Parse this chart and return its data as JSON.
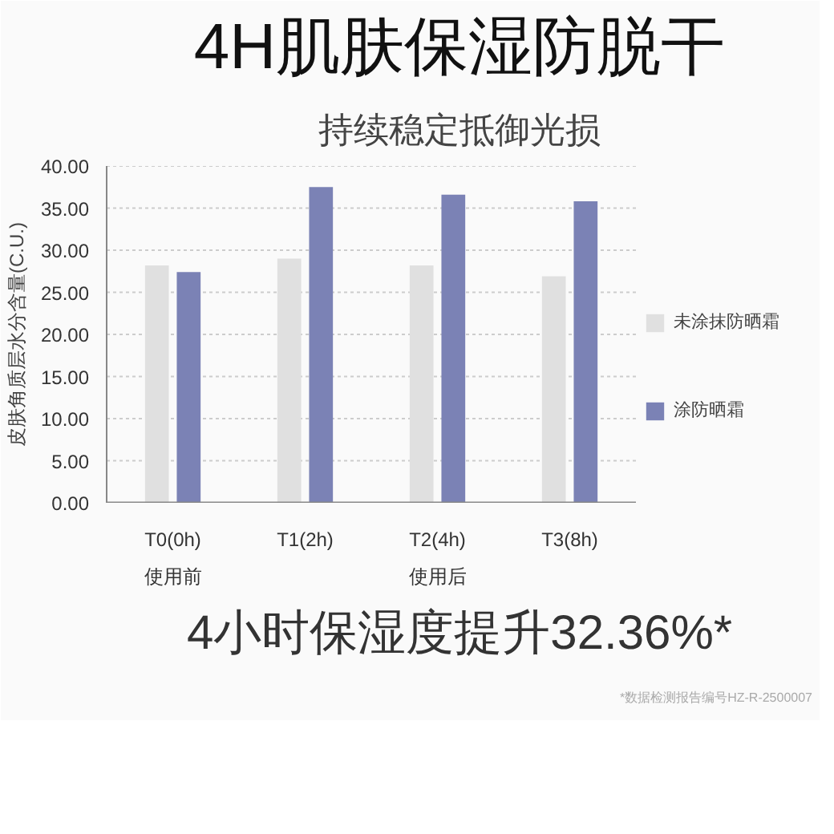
{
  "chart_data": {
    "type": "bar",
    "title": "4H肌肤保湿防脱干",
    "subtitle": "持续稳定抵御光损",
    "ylabel": "皮肤角质层水分含量(C.U.)",
    "categories": [
      "T0(0h)",
      "T1(2h)",
      "T2(4h)",
      "T3(8h)"
    ],
    "series": [
      {
        "name": "未涂抹防晒霜",
        "color": "#e0e0e0",
        "values": [
          28.2,
          29.0,
          28.2,
          26.9
        ]
      },
      {
        "name": "涂防晒霜",
        "color": "#7b82b5",
        "values": [
          27.4,
          37.5,
          36.6,
          35.8
        ]
      }
    ],
    "ylim": [
      0,
      40
    ],
    "yticks": [
      {
        "value": 0,
        "label": "0.00"
      },
      {
        "value": 5,
        "label": "5.00"
      },
      {
        "value": 10,
        "label": "10.00"
      },
      {
        "value": 15,
        "label": "15.00"
      },
      {
        "value": 20,
        "label": "20.00"
      },
      {
        "value": 25,
        "label": "25.00"
      },
      {
        "value": 30,
        "label": "30.00"
      },
      {
        "value": 35,
        "label": "35.00"
      },
      {
        "value": 40,
        "label": "40.00"
      }
    ],
    "grid": "y",
    "legend": "right",
    "annotations": [
      "使用前",
      "使用后",
      "4小时保湿度提升32.36%*",
      "*数据检测报告编号HZ-R-2500007"
    ]
  }
}
